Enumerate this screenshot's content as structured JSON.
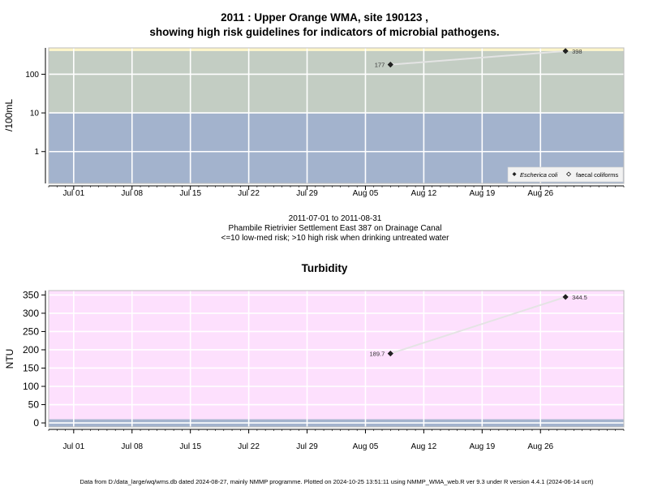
{
  "header": {
    "title_line1": "2011 : Upper Orange WMA, site 190123 ,",
    "title_line2": "showing high risk guidelines for indicators of microbial pathogens."
  },
  "sub_caption": {
    "line1": "2011-07-01 to 2011-08-31",
    "line2": "Phambile Rietrivier Settlement East 387 on Drainage Canal",
    "line3": "<=10 low-med risk; >10 high risk when drinking untreated water"
  },
  "footer": {
    "text": "Data from D:/data_large/wq/wms.db dated 2024-08-27, mainly NMMP programme. Plotted on 2024-10-25 13:51:11 using NMMP_WMA_web.R ver 9.3 under R version 4.4.1 (2024-06-14 ucrt)"
  },
  "chart_data": [
    {
      "type": "line",
      "title": "",
      "ylabel": "/100mL",
      "yscale": "log",
      "ylim": [
        0.15,
        480
      ],
      "xlim": [
        "2011-06-28",
        "2011-09-05"
      ],
      "x_ticks": [
        "Jul 01",
        "Jul 08",
        "Jul 15",
        "Jul 22",
        "Jul 29",
        "Aug 05",
        "Aug 12",
        "Aug 19",
        "Aug 26"
      ],
      "x_tick_dates": [
        "2011-07-01",
        "2011-07-08",
        "2011-07-15",
        "2011-07-22",
        "2011-07-29",
        "2011-08-05",
        "2011-08-12",
        "2011-08-19",
        "2011-08-26"
      ],
      "y_ticks": [
        1,
        10,
        100
      ],
      "y_tick_labels": [
        "1",
        "10",
        "100"
      ],
      "bands": [
        {
          "from": 0.15,
          "to": 10,
          "color": "#a3b3cd"
        },
        {
          "from": 10,
          "to": 400,
          "color": "#c3cdc3"
        },
        {
          "from": 400,
          "to": 480,
          "color": "#fdf5c8"
        }
      ],
      "grid": true,
      "legend_position": "bottom-right",
      "series": [
        {
          "name": "Escherica coli",
          "marker": "filled-diamond",
          "points": [
            {
              "x": "2011-08-08",
              "y": 177,
              "label": "177"
            },
            {
              "x": "2011-08-29",
              "y": 398,
              "label": "398"
            }
          ]
        },
        {
          "name": "faecal coliforms",
          "marker": "open-diamond",
          "points": []
        }
      ]
    },
    {
      "type": "line",
      "title": "Turbidity",
      "ylabel": "NTU",
      "yscale": "linear",
      "ylim": [
        -11,
        362
      ],
      "xlim": [
        "2011-06-28",
        "2011-09-05"
      ],
      "x_ticks": [
        "Jul 01",
        "Jul 08",
        "Jul 15",
        "Jul 22",
        "Jul 29",
        "Aug 05",
        "Aug 12",
        "Aug 19",
        "Aug 26"
      ],
      "x_tick_dates": [
        "2011-07-01",
        "2011-07-08",
        "2011-07-15",
        "2011-07-22",
        "2011-07-29",
        "2011-08-05",
        "2011-08-12",
        "2011-08-19",
        "2011-08-26"
      ],
      "y_ticks": [
        0,
        50,
        100,
        150,
        200,
        250,
        300,
        350
      ],
      "y_tick_labels": [
        "0",
        "50",
        "100",
        "150",
        "200",
        "250",
        "300",
        "350"
      ],
      "bands": [
        {
          "from": -11,
          "to": 10,
          "color": "#a3b3cd"
        },
        {
          "from": 10,
          "to": 362,
          "color": "#fde0fd"
        }
      ],
      "grid": true,
      "series": [
        {
          "name": "",
          "marker": "filled-diamond",
          "points": [
            {
              "x": "2011-08-08",
              "y": 189.7,
              "label": "189.7"
            },
            {
              "x": "2011-08-29",
              "y": 344.5,
              "label": "344.5"
            }
          ]
        }
      ]
    }
  ]
}
